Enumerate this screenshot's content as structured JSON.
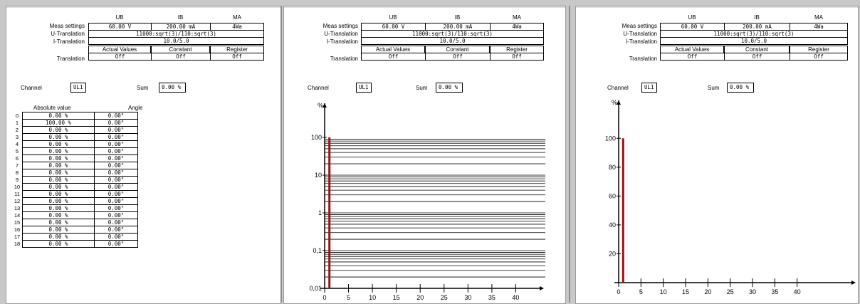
{
  "settings": {
    "col_headers": [
      "UB",
      "IB",
      "MA"
    ],
    "meas_label": "Meas settings",
    "meas_values": [
      "60.00 V",
      "200.00 mA",
      "4Wa"
    ],
    "u_label": "U-Translation",
    "u_value": "11000:sqrt(3)/110:sqrt(3)",
    "i_label": "I-Translation",
    "i_value": "10.0/5.0",
    "trans_headers": [
      "Actual Values",
      "Constant",
      "Register"
    ],
    "trans_label": "Translation",
    "trans_values": [
      "Off",
      "Off",
      "Off"
    ]
  },
  "channel": {
    "label": "Channel",
    "value": "UL1"
  },
  "sum": {
    "label": "Sum",
    "value": "0.00 %"
  },
  "harmonics_table": {
    "col_abs": "Absolute value",
    "col_angle": "Angle",
    "rows": [
      {
        "n": "0",
        "abs": "0.00 %",
        "angle": "0.00°"
      },
      {
        "n": "1",
        "abs": "100.00 %",
        "angle": "0.00°"
      },
      {
        "n": "2",
        "abs": "0.00 %",
        "angle": "0.00°"
      },
      {
        "n": "3",
        "abs": "0.00 %",
        "angle": "0.00°"
      },
      {
        "n": "4",
        "abs": "0.00 %",
        "angle": "0.00°"
      },
      {
        "n": "5",
        "abs": "0.00 %",
        "angle": "0.00°"
      },
      {
        "n": "6",
        "abs": "0.00 %",
        "angle": "0.00°"
      },
      {
        "n": "7",
        "abs": "0.00 %",
        "angle": "0.00°"
      },
      {
        "n": "8",
        "abs": "0.00 %",
        "angle": "0.00°"
      },
      {
        "n": "9",
        "abs": "0.00 %",
        "angle": "0.00°"
      },
      {
        "n": "10",
        "abs": "0.00 %",
        "angle": "0.00°"
      },
      {
        "n": "11",
        "abs": "0.00 %",
        "angle": "0.00°"
      },
      {
        "n": "12",
        "abs": "0.00 %",
        "angle": "0.00°"
      },
      {
        "n": "13",
        "abs": "0.00 %",
        "angle": "0.00°"
      },
      {
        "n": "14",
        "abs": "0.00 %",
        "angle": "0.00°"
      },
      {
        "n": "15",
        "abs": "0.00 %",
        "angle": "0.00°"
      },
      {
        "n": "16",
        "abs": "0.00 %",
        "angle": "0.00°"
      },
      {
        "n": "17",
        "abs": "0.00 %",
        "angle": "0.00°"
      },
      {
        "n": "18",
        "abs": "0.00 %",
        "angle": "0.00°"
      }
    ]
  },
  "chart_data": [
    {
      "type": "bar",
      "scale": "log",
      "ylabel": "%",
      "y_ticks": [
        "0,01",
        "0,1",
        "1",
        "10",
        "100"
      ],
      "ylim": [
        0.01,
        100
      ],
      "x_ticks": [
        "0",
        "5",
        "10",
        "15",
        "20",
        "25",
        "30",
        "35",
        "40"
      ],
      "xlim": [
        0,
        45
      ],
      "grid": true,
      "bar_color": "#a01010",
      "bars": [
        {
          "x": 1,
          "value": 100
        }
      ]
    },
    {
      "type": "bar",
      "scale": "linear",
      "ylabel": "%",
      "y_ticks": [
        "20",
        "40",
        "60",
        "80",
        "100"
      ],
      "ylim": [
        0,
        110
      ],
      "x_ticks": [
        "0",
        "5",
        "10",
        "15",
        "20",
        "25",
        "30",
        "35",
        "40"
      ],
      "xlim": [
        0,
        45
      ],
      "grid": false,
      "bar_color": "#a01010",
      "bars": [
        {
          "x": 1,
          "value": 100
        }
      ]
    }
  ]
}
